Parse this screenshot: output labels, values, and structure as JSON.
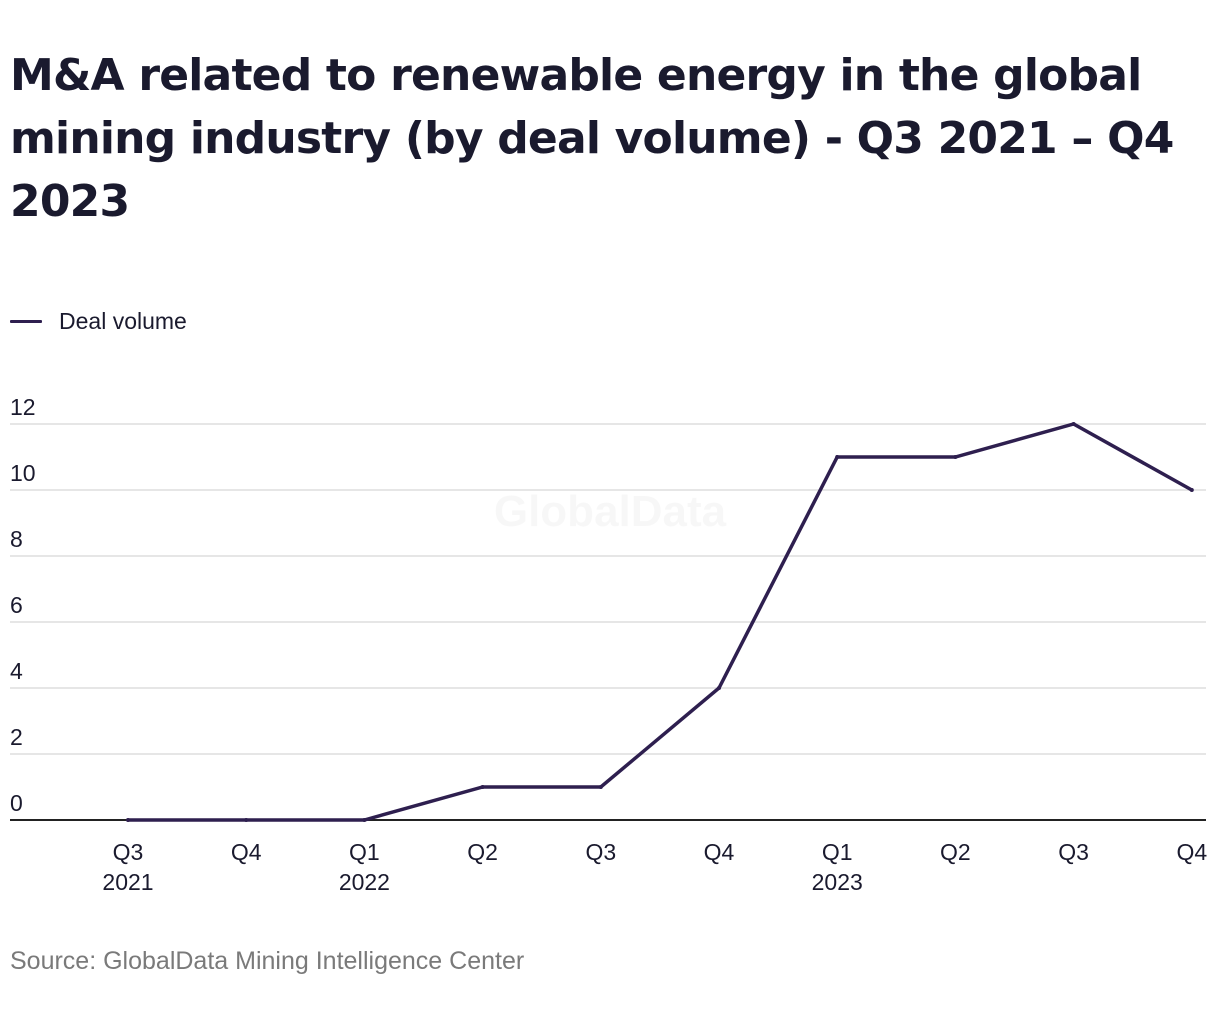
{
  "chart_data": {
    "type": "line",
    "title": "M&A related to renewable energy in the global mining industry (by deal volume) - Q3 2021 – Q4 2023",
    "x": [
      {
        "quarter": "Q3",
        "year": "2021"
      },
      {
        "quarter": "Q4",
        "year": ""
      },
      {
        "quarter": "Q1",
        "year": "2022"
      },
      {
        "quarter": "Q2",
        "year": ""
      },
      {
        "quarter": "Q3",
        "year": ""
      },
      {
        "quarter": "Q4",
        "year": ""
      },
      {
        "quarter": "Q1",
        "year": "2023"
      },
      {
        "quarter": "Q2",
        "year": ""
      },
      {
        "quarter": "Q3",
        "year": ""
      },
      {
        "quarter": "Q4",
        "year": ""
      }
    ],
    "series": [
      {
        "name": "Deal volume",
        "values": [
          0,
          0,
          0,
          1,
          1,
          4,
          11,
          11,
          12,
          10
        ],
        "color": "#2e1f4f"
      }
    ],
    "ylim": [
      0,
      12
    ],
    "yticks": [
      "0",
      "2",
      "4",
      "6",
      "8",
      "10",
      "12"
    ],
    "grid": true,
    "legend_position": "top-left"
  },
  "watermark": "GlobalData",
  "source": "Source: GlobalData Mining Intelligence Center",
  "colors": {
    "line": "#2e1f4f",
    "grid": "#dddddd",
    "axis": "#222222",
    "text": "#1a1a2e",
    "source": "#7a7a7a"
  }
}
